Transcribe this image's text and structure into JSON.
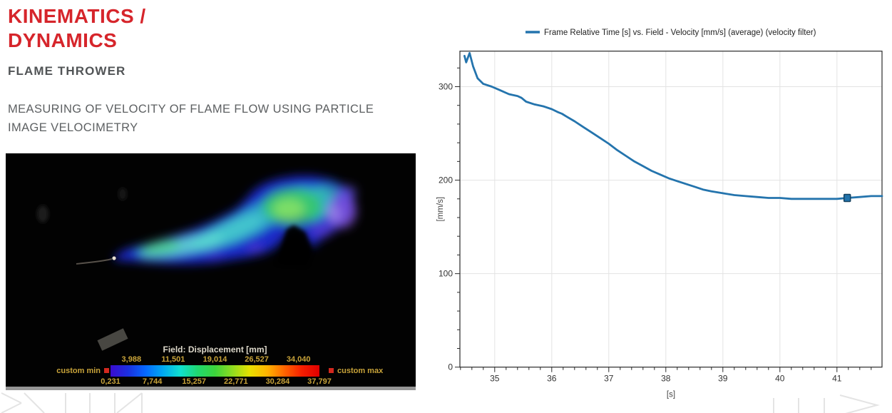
{
  "left_panel": {
    "title_line1": "KINEMATICS /",
    "title_line2": "DYNAMICS",
    "subtitle": "FLAME THROWER",
    "description_line1": "MEASURING OF VELOCITY OF FLAME FLOW USING PARTICLE",
    "description_line2": "IMAGE VELOCIMETRY",
    "colors": {
      "title_red": "#d6252b",
      "subtitle_gray": "#515456",
      "description_gray": "#5d6062"
    }
  },
  "piv_image": {
    "colorbar": {
      "title": "Field: Displacement [mm]",
      "top_labels": [
        "3,988",
        "11,501",
        "19,014",
        "26,527",
        "34,040"
      ],
      "bottom_labels": [
        "0,231",
        "7,744",
        "15,257",
        "22,771",
        "30,284",
        "37,797"
      ],
      "custom_min_label": "custom min",
      "custom_max_label": "custom max",
      "label_color": "#c9a43a",
      "title_color": "#ddd8ca",
      "minmax_marker_color": "#d3281e",
      "colormap": [
        "#3a0ccf",
        "#1b2fe0",
        "#0668ff",
        "#00a8f0",
        "#10e0d0",
        "#20d870",
        "#3cd33c",
        "#8fdc20",
        "#e8e000",
        "#ffb400",
        "#ff6400",
        "#f81e00",
        "#e00000"
      ]
    }
  },
  "chart_data": {
    "type": "line",
    "legend_label": "Frame Relative Time [s] vs. Field - Velocity [mm/s] (average) (velocity filter)",
    "series_name": "Field - Velocity (average) (velocity filter)",
    "xlabel": "[s]",
    "ylabel": "[mm/s]",
    "xlim": [
      34.39,
      41.79
    ],
    "ylim": [
      0,
      338
    ],
    "xticks": [
      35,
      36,
      37,
      38,
      39,
      40,
      41
    ],
    "yticks": [
      0,
      100,
      200,
      300
    ],
    "minor_x_step": 0.2,
    "minor_y_step": 20,
    "grid": true,
    "legend_position": "top",
    "line_color": "#2474ad",
    "marker_color": "#2273ac",
    "marker_border_color": "#14415f",
    "grid_color": "#e3e3e3",
    "axis_color": "#2a2a2a",
    "x": [
      34.47,
      34.5,
      34.56,
      34.62,
      34.7,
      34.8,
      34.95,
      35.1,
      35.25,
      35.32,
      35.4,
      35.47,
      35.55,
      35.7,
      35.85,
      36.0,
      36.1,
      36.18,
      36.26,
      36.4,
      36.55,
      36.7,
      36.85,
      37.0,
      37.15,
      37.3,
      37.45,
      37.6,
      37.75,
      37.9,
      38.05,
      38.2,
      38.35,
      38.5,
      38.65,
      38.8,
      39.0,
      39.2,
      39.4,
      39.6,
      39.8,
      40.0,
      40.2,
      40.4,
      40.6,
      40.8,
      41.0,
      41.18,
      41.4,
      41.6,
      41.79
    ],
    "y": [
      333,
      326,
      336,
      322,
      309,
      303,
      300,
      296,
      292,
      291,
      290,
      288,
      284,
      281,
      279,
      276,
      273,
      271,
      268,
      263,
      257,
      251,
      245,
      239,
      232,
      226,
      220,
      215,
      210,
      206,
      202,
      199,
      196,
      193,
      190,
      188,
      186,
      184,
      183,
      182,
      181,
      181,
      180,
      180,
      180,
      180,
      180,
      181,
      182,
      183,
      183
    ],
    "marker_point": {
      "x": 41.18,
      "y": 181
    }
  }
}
